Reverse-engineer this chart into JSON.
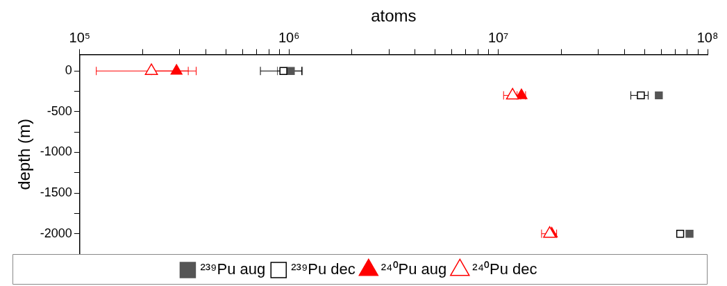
{
  "chart_data": {
    "type": "scatter",
    "xlabel": "atoms",
    "ylabel": "depth (m)",
    "log": "x",
    "grid": false,
    "legend": "bottom",
    "xlim": [
      100000,
      100000000
    ],
    "xticks": [
      {
        "value": 100000,
        "label": "10⁵"
      },
      {
        "value": 200000,
        "label": null
      },
      {
        "value": 300000,
        "label": null
      },
      {
        "value": 400000,
        "label": null
      },
      {
        "value": 500000,
        "label": null
      },
      {
        "value": 600000,
        "label": null
      },
      {
        "value": 700000,
        "label": null
      },
      {
        "value": 800000,
        "label": null
      },
      {
        "value": 900000,
        "label": null
      },
      {
        "value": 1000000,
        "label": "10⁶"
      },
      {
        "value": 2000000,
        "label": null
      },
      {
        "value": 3000000,
        "label": null
      },
      {
        "value": 4000000,
        "label": null
      },
      {
        "value": 5000000,
        "label": null
      },
      {
        "value": 6000000,
        "label": null
      },
      {
        "value": 7000000,
        "label": null
      },
      {
        "value": 8000000,
        "label": null
      },
      {
        "value": 9000000,
        "label": null
      },
      {
        "value": 10000000,
        "label": "10⁷"
      },
      {
        "value": 20000000,
        "label": null
      },
      {
        "value": 30000000,
        "label": null
      },
      {
        "value": 40000000,
        "label": null
      },
      {
        "value": 50000000,
        "label": null
      },
      {
        "value": 60000000,
        "label": null
      },
      {
        "value": 70000000,
        "label": null
      },
      {
        "value": 80000000,
        "label": null
      },
      {
        "value": 90000000,
        "label": null
      },
      {
        "value": 100000000,
        "label": "10⁸"
      }
    ],
    "ylim": [
      -2250,
      200
    ],
    "yticks": [
      0,
      {
        "value": -250,
        "label": null
      },
      -500,
      {
        "value": -750,
        "label": null
      },
      -1000,
      {
        "value": -1250,
        "label": null
      },
      -1500,
      {
        "value": -1750,
        "label": null
      },
      -2000
    ],
    "series": [
      {
        "name": "²³⁹Pu aug",
        "color": "#555555",
        "marker": "square",
        "x": [
          1020000,
          58500000,
          82000000
        ],
        "values": [
          0,
          -300,
          -2000
        ],
        "xerrors": [
          140000,
          null,
          null
        ]
      },
      {
        "name": "²³⁹Pu dec",
        "color": "#000000",
        "marker": "square-open",
        "x": [
          940000,
          48000000,
          74000000
        ],
        "values": [
          0,
          -300,
          -2000
        ],
        "xerrors": [
          [
            730000,
            1150000
          ],
          [
            43000000,
            52000000
          ],
          null
        ]
      },
      {
        "name": "²⁴⁰Pu aug",
        "color": "#ff0000",
        "marker": "triangle",
        "x": [
          290000,
          12900000,
          18000000
        ],
        "values": [
          0,
          -300,
          -2000
        ],
        "xerrors": [
          70000,
          600000,
          null
        ]
      },
      {
        "name": "²⁴⁰Pu dec",
        "color": "#ff0000",
        "marker": "triangle-open",
        "x": [
          220000,
          11700000,
          17600000
        ],
        "values": [
          0,
          -300,
          -2000
        ],
        "xerrors": [
          [
            120000,
            330000
          ],
          [
            10600000,
            12800000
          ],
          [
            16100000,
            19000000
          ]
        ]
      }
    ]
  }
}
